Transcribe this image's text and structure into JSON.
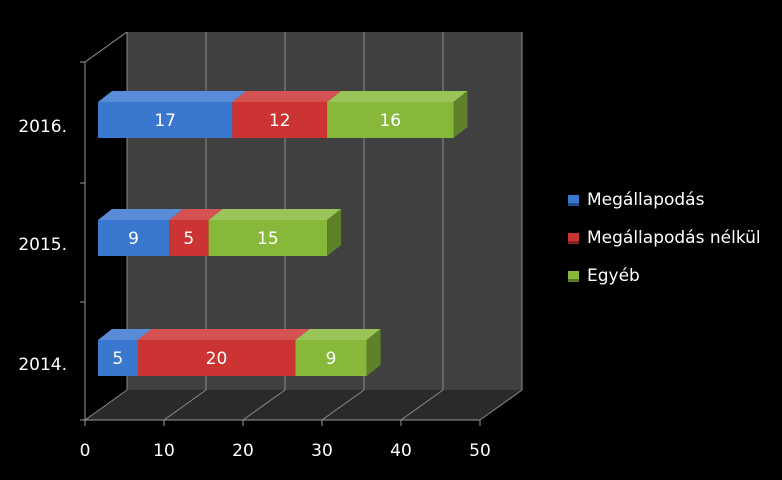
{
  "chart_data": {
    "type": "bar",
    "orientation": "horizontal",
    "stacked": true,
    "three_d": true,
    "categories": [
      "2014.",
      "2015.",
      "2016."
    ],
    "series": [
      {
        "name": "Megállapodás",
        "values": [
          5,
          9,
          17
        ],
        "color": "#3a78d0"
      },
      {
        "name": "Megállapodás nélkül",
        "values": [
          20,
          5,
          12
        ],
        "color": "#cc3333"
      },
      {
        "name": "Egyéb",
        "values": [
          9,
          15,
          16
        ],
        "color": "#88b83a"
      }
    ],
    "xlim": [
      0,
      50
    ],
    "xticks": [
      0,
      10,
      20,
      30,
      40,
      50
    ],
    "grid": true,
    "legend_position": "right",
    "background": "#000000",
    "wall_color": "#404040"
  }
}
